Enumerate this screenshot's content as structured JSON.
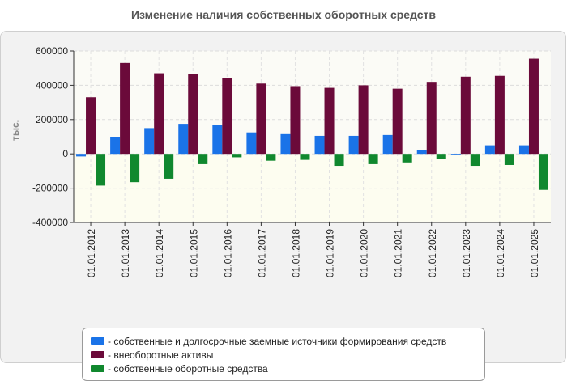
{
  "chart_data": {
    "type": "bar",
    "title": "Изменение наличия собственных оборотных средств",
    "ylabel": "тыс.",
    "xlabel": "",
    "ylim": [
      -400000,
      600000
    ],
    "yticks": [
      600000,
      400000,
      200000,
      0,
      -200000,
      -400000
    ],
    "ytick_labels": [
      "600000",
      "400000",
      "200000",
      "0",
      "-200000",
      "-400000"
    ],
    "grid": true,
    "legend_position": "bottom",
    "categories": [
      "01.01.2012",
      "01.01.2013",
      "01.01.2014",
      "01.01.2015",
      "01.01.2016",
      "01.01.2017",
      "01.01.2018",
      "01.01.2019",
      "01.01.2020",
      "01.01.2021",
      "01.01.2022",
      "01.01.2023",
      "01.01.2024",
      "01.01.2025"
    ],
    "series": [
      {
        "name": "- собственные и долгосрочные заемные источники формирования средств",
        "color": "#1a73e8",
        "values": [
          -15000,
          100000,
          150000,
          175000,
          170000,
          125000,
          115000,
          105000,
          105000,
          110000,
          20000,
          -5000,
          50000,
          50000
        ]
      },
      {
        "name": "- внеоборотные активы",
        "color": "#6b0a3a",
        "values": [
          330000,
          530000,
          470000,
          465000,
          440000,
          410000,
          395000,
          385000,
          400000,
          380000,
          420000,
          450000,
          455000,
          555000
        ]
      },
      {
        "name": "- собственные оборотные средства",
        "color": "#10882e",
        "values": [
          -185000,
          -165000,
          -145000,
          -60000,
          -20000,
          -40000,
          -35000,
          -70000,
          -60000,
          -50000,
          -30000,
          -70000,
          -65000,
          -210000
        ]
      }
    ]
  }
}
